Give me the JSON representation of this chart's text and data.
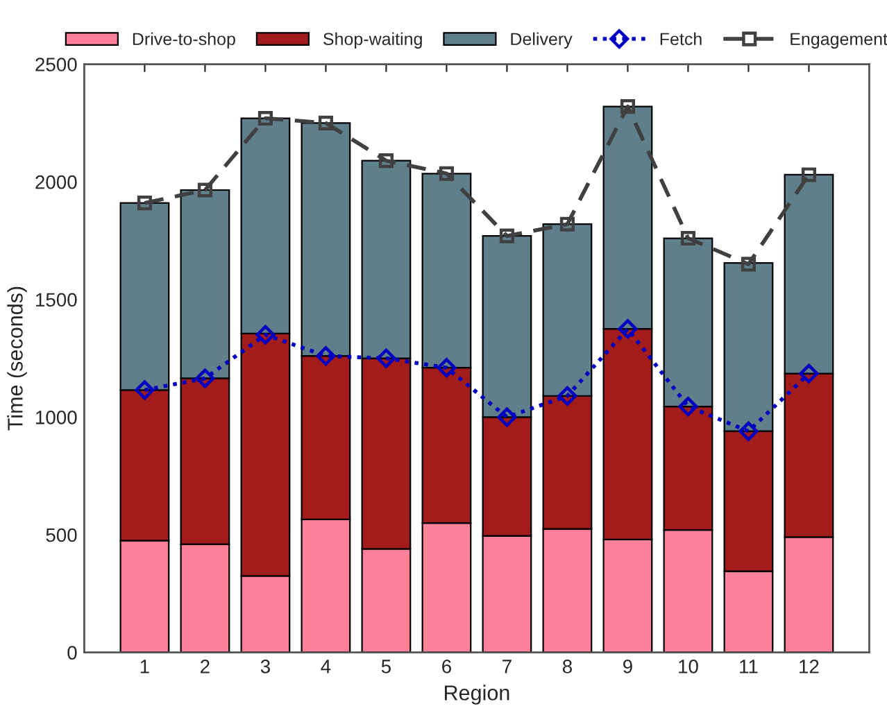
{
  "chart_data": {
    "type": "bar",
    "stacked": true,
    "xlabel": "Region",
    "ylabel": "Time (seconds)",
    "categories": [
      "1",
      "2",
      "3",
      "4",
      "5",
      "6",
      "7",
      "8",
      "9",
      "10",
      "11",
      "12"
    ],
    "ylim": [
      0,
      2500
    ],
    "yticks": [
      0,
      500,
      1000,
      1500,
      2000,
      2500
    ],
    "grid": false,
    "legend": "top",
    "series": [
      {
        "name": "Drive-to-shop",
        "color": "#ff8099",
        "values": [
          475,
          460,
          325,
          565,
          440,
          550,
          495,
          525,
          480,
          520,
          345,
          490
        ]
      },
      {
        "name": "Shop-waiting",
        "color": "#a21c1c",
        "values": [
          640,
          705,
          1030,
          695,
          810,
          660,
          505,
          565,
          895,
          525,
          595,
          695
        ]
      },
      {
        "name": "Delivery",
        "color": "#5f7f8a",
        "values": [
          795,
          800,
          915,
          990,
          840,
          825,
          770,
          730,
          945,
          715,
          715,
          845
        ]
      },
      {
        "name": "Fetch",
        "type": "line",
        "color": "#0000c0",
        "marker": "diamond",
        "line_style": "dotted",
        "values": [
          1115,
          1165,
          1350,
          1260,
          1250,
          1210,
          1000,
          1090,
          1375,
          1045,
          940,
          1185
        ]
      },
      {
        "name": "Engagement",
        "type": "line",
        "color": "#404040",
        "marker": "square",
        "line_style": "dashed",
        "values": [
          1910,
          1965,
          2270,
          2250,
          2090,
          2035,
          1770,
          1820,
          2320,
          1760,
          1650,
          2030
        ]
      }
    ]
  }
}
